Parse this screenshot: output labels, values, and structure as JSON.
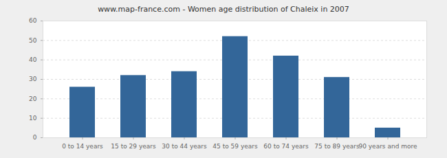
{
  "chart_data": {
    "type": "bar",
    "title": "www.map-france.com - Women age distribution of Chaleix in 2007",
    "categories": [
      "0 to 14 years",
      "15 to 29 years",
      "30 to 44 years",
      "45 to 59 years",
      "60 to 74 years",
      "75 to 89 years",
      "90 years and more"
    ],
    "values": [
      26,
      32,
      34,
      52,
      42,
      31,
      5
    ],
    "color": "#336699",
    "ylim": [
      0,
      60
    ],
    "yticks": [
      0,
      10,
      20,
      30,
      40,
      50,
      60
    ],
    "grid": true
  }
}
